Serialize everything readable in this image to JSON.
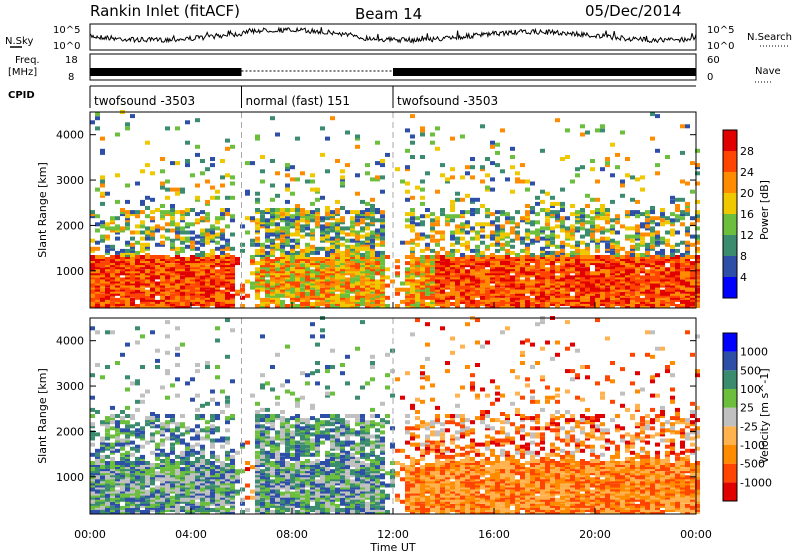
{
  "header": {
    "title": "Rankin Inlet (fitACF)",
    "beam": "Beam 14",
    "date": "05/Dec/2014"
  },
  "side_labels": {
    "nsky": "N.Sky",
    "freq": "Freq.",
    "freq_unit": "[MHz]",
    "cpid": "CPID",
    "nsearch": "N.Search",
    "nave": "Nave"
  },
  "noise_panel": {
    "left_ticks": [
      "10^5",
      "10^0"
    ],
    "right_ticks": [
      "10^5",
      "10^0"
    ]
  },
  "freq_panel": {
    "left_ticks": [
      "18",
      "8"
    ],
    "right_ticks": [
      "60",
      "0"
    ]
  },
  "cpid_segments": [
    {
      "label": "twofsound -3503",
      "start_h": 0,
      "end_h": 6
    },
    {
      "label": "normal (fast) 151",
      "start_h": 6,
      "end_h": 12
    },
    {
      "label": "twofsound -3503",
      "start_h": 12,
      "end_h": 24
    }
  ],
  "time_axis": {
    "label": "Time UT",
    "ticks": [
      "00:00",
      "04:00",
      "08:00",
      "12:00",
      "16:00",
      "20:00",
      "00:00"
    ],
    "range_h": [
      0,
      24
    ]
  },
  "colors": {
    "power": [
      "#0000ff",
      "#2e4fa8",
      "#3b8c6e",
      "#6cbf3c",
      "#f0c800",
      "#ff8c00",
      "#ff4500",
      "#e00000"
    ],
    "velocity": [
      "#e00000",
      "#ff4500",
      "#ff8c00",
      "#ffb24d",
      "#c0c0c0",
      "#6cbf3c",
      "#3b8c6e",
      "#2e4fa8",
      "#0000ff"
    ]
  },
  "chart_data": [
    {
      "type": "heatmap",
      "quantity": "power",
      "ylabel": "Slant Range [km]",
      "ylim": [
        180,
        4500
      ],
      "y_ticks": [
        1000,
        2000,
        3000,
        4000
      ],
      "xlim_h": [
        0,
        24
      ],
      "colorbar_label": "Power [dB]",
      "colorbar_ticks": [
        "4",
        "8",
        "12",
        "16",
        "20",
        "24",
        "28"
      ],
      "colorbar_range": [
        0,
        32
      ]
    },
    {
      "type": "heatmap",
      "quantity": "velocity",
      "ylabel": "Slant Range [km]",
      "ylim": [
        180,
        4500
      ],
      "y_ticks": [
        1000,
        2000,
        3000,
        4000
      ],
      "xlim_h": [
        0,
        24
      ],
      "colorbar_label": "Velocity [m s^-1]",
      "colorbar_ticks": [
        "-1000",
        "-500",
        "-100",
        "-25",
        "25",
        "100",
        "500",
        "1000"
      ]
    }
  ]
}
